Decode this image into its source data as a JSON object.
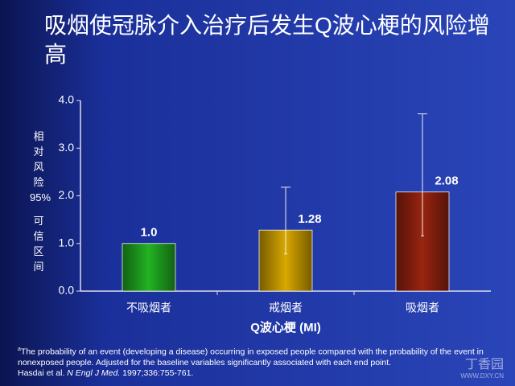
{
  "chart_data": {
    "type": "bar",
    "title": "吸烟使冠脉介入治疗后发生Q波心梗的风险增高",
    "categories": [
      "不吸烟者",
      "戒烟者",
      "吸烟者"
    ],
    "values": [
      1,
      1.28,
      2.08
    ],
    "value_labels": [
      "1.0",
      "1.28",
      "2.08"
    ],
    "error_low": [
      null,
      0.78,
      1.16
    ],
    "error_high": [
      null,
      2.18,
      3.72
    ],
    "colors": [
      "#22b322",
      "#d9a800",
      "#9a2410"
    ],
    "ylim": [
      0,
      4
    ],
    "yticks": [
      {
        "value": 0,
        "label": "0.0"
      },
      {
        "value": 1,
        "label": "1.0"
      },
      {
        "value": 2,
        "label": "2.0"
      },
      {
        "value": 3,
        "label": "3.0"
      },
      {
        "value": 4,
        "label": "4.0"
      }
    ],
    "y_label": [
      "相对风险",
      "95%",
      "可信区间"
    ],
    "x_label": "Q波心梗 (MI)"
  },
  "footnote": {
    "marker": "a",
    "text": "The probability of an event (developing a disease) occurring in exposed people compared with the probability of the event in nonexposed people. Adjusted for the baseline variables significantly associated with each end point."
  },
  "citation": {
    "authors": "Hasdai et al.",
    "journal": "N Engl J Med.",
    "details": "1997;336:755-761."
  },
  "watermark": {
    "logo": "丁香园",
    "url": "WWW.DXY.CN"
  }
}
